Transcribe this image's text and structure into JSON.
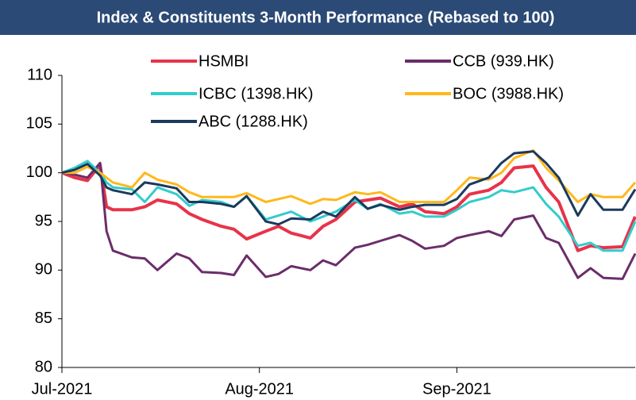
{
  "chart_data": {
    "type": "line",
    "title": "Index & Constituents 3-Month Performance (Rebased to 100)",
    "x": [
      0,
      2,
      4,
      6,
      7,
      8,
      11,
      13,
      15,
      18,
      20,
      22,
      25,
      27,
      29,
      32,
      34,
      36,
      39,
      41,
      43,
      46,
      48,
      50,
      53,
      55,
      57,
      60,
      62,
      64,
      67,
      69,
      71,
      74,
      76,
      78,
      81,
      83,
      85,
      88,
      90
    ],
    "series": [
      {
        "name": "HSMBI",
        "color": "#e8334a",
        "values": [
          100,
          99.5,
          99.2,
          100.8,
          96.5,
          96.2,
          96.2,
          96.5,
          97.2,
          96.8,
          95.8,
          95.2,
          94.5,
          94.2,
          93.2,
          94,
          94.5,
          93.8,
          93.3,
          94.5,
          95.2,
          97,
          97.2,
          97.4,
          96.5,
          96.8,
          96,
          95.8,
          96.5,
          97.8,
          98.2,
          99,
          100.5,
          100.7,
          98.5,
          97,
          92,
          92.5,
          92.3,
          92.4,
          95.5
        ]
      },
      {
        "name": "CCB (939.HK)",
        "color": "#6b2d6b",
        "values": [
          100,
          99.8,
          99.5,
          101,
          94,
          92,
          91.3,
          91.2,
          90,
          91.7,
          91.2,
          89.8,
          89.7,
          89.5,
          91.5,
          89.3,
          89.6,
          90.4,
          90,
          91,
          90.5,
          92.3,
          92.6,
          93,
          93.6,
          93,
          92.2,
          92.5,
          93.3,
          93.6,
          94,
          93.5,
          95.2,
          95.6,
          93.3,
          92.8,
          89.2,
          90.2,
          89.2,
          89.1,
          91.7
        ]
      },
      {
        "name": "ICBC (1398.HK)",
        "color": "#33cccc",
        "values": [
          100,
          100.5,
          101.2,
          100,
          99,
          98.5,
          98.3,
          97,
          98.5,
          97.8,
          96.6,
          97.2,
          97,
          96.5,
          97.6,
          95.2,
          95.6,
          96,
          95,
          95.5,
          96,
          97.2,
          96.3,
          96.8,
          95.8,
          96,
          95.5,
          95.5,
          96.2,
          97,
          97.5,
          98.2,
          98,
          98.5,
          96.8,
          95.5,
          92.5,
          92.8,
          92,
          92,
          95
        ]
      },
      {
        "name": "BOC (3988.HK)",
        "color": "#ffb81c",
        "values": [
          100,
          100,
          100.6,
          100,
          99.5,
          99,
          98.5,
          100,
          99.3,
          98.8,
          98,
          97.5,
          97.5,
          97.5,
          97.9,
          97,
          97.3,
          97.6,
          96.8,
          97.3,
          97.2,
          98,
          97.8,
          98,
          97,
          97,
          97,
          97,
          98.2,
          99.5,
          99.3,
          100,
          101.5,
          102.3,
          100.5,
          99.2,
          97,
          97.8,
          97.5,
          97.5,
          99
        ]
      },
      {
        "name": "ABC (1288.HK)",
        "color": "#1b3a5c",
        "values": [
          100,
          100.3,
          100.9,
          99.7,
          98.5,
          98.2,
          97.8,
          99,
          98.8,
          98.4,
          97,
          97,
          96.8,
          96.5,
          97.6,
          95,
          94.7,
          95.3,
          95.2,
          96,
          95.5,
          97.5,
          96.3,
          96.7,
          96.2,
          96.5,
          96.7,
          96.7,
          97.3,
          98.8,
          99.5,
          101,
          102,
          102.2,
          101,
          99.5,
          95.6,
          97.8,
          96.2,
          96.2,
          98.3
        ]
      }
    ],
    "xlim": [
      0,
      90
    ],
    "xticks": [
      {
        "value": 0,
        "label": "Jul-2021"
      },
      {
        "value": 31,
        "label": "Aug-2021"
      },
      {
        "value": 62,
        "label": "Sep-2021"
      }
    ],
    "ylim": [
      80,
      110
    ],
    "yticks": [
      80,
      85,
      90,
      95,
      100,
      105,
      110
    ],
    "grid": false
  }
}
